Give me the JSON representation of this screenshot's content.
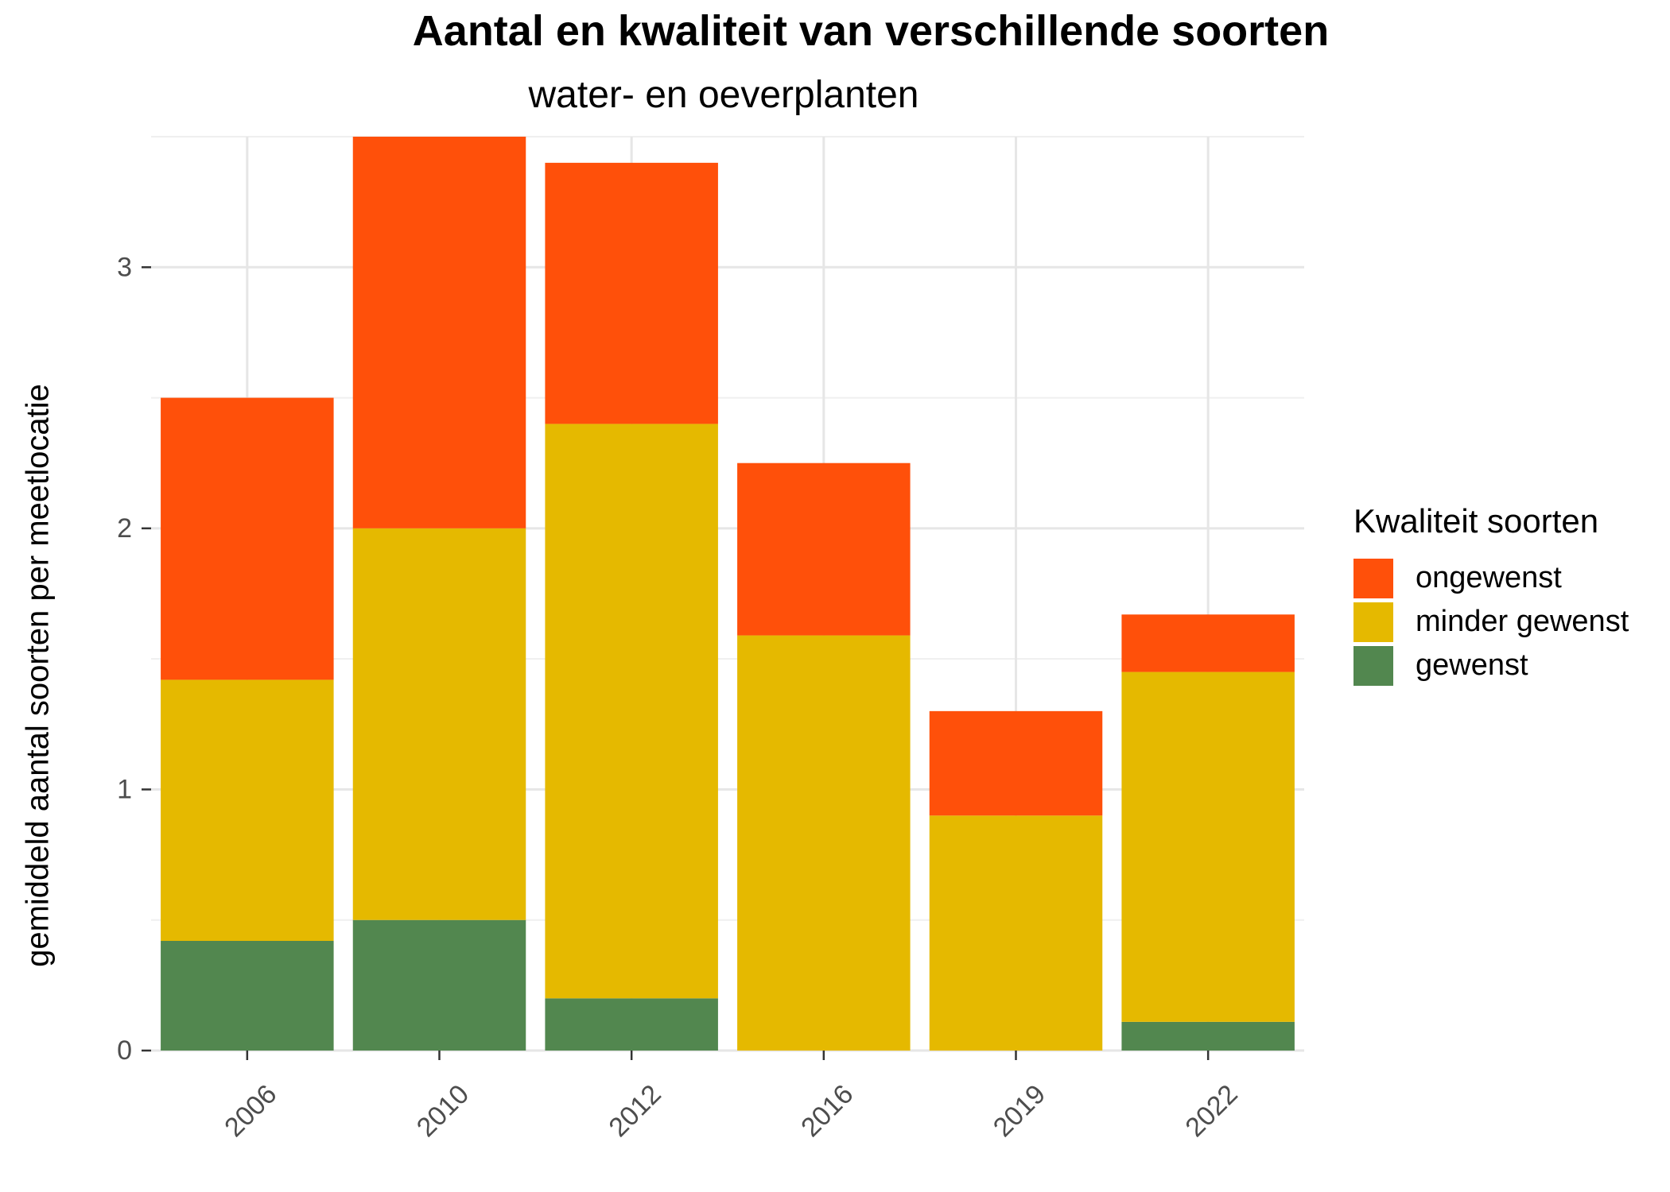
{
  "chart_data": {
    "type": "bar",
    "stacked": true,
    "title": "Aantal en kwaliteit van verschillende soorten",
    "subtitle": "water- en oeverplanten",
    "xlabel": "",
    "ylabel": "gemiddeld aantal soorten per meetlocatie",
    "categories": [
      "2006",
      "2010",
      "2012",
      "2016",
      "2019",
      "2022"
    ],
    "ylim": [
      0,
      3.5
    ],
    "yticks": [
      0,
      1,
      2,
      3
    ],
    "grid": true,
    "legend": {
      "title": "Kwaliteit soorten",
      "placement": "right"
    },
    "series": [
      {
        "name": "gewenst",
        "color": "#52874F",
        "values": [
          0.42,
          0.5,
          0.2,
          0.0,
          0.0,
          0.11
        ]
      },
      {
        "name": "minder gewenst",
        "color": "#E5B900",
        "values": [
          1.0,
          1.5,
          2.2,
          1.59,
          0.9,
          1.34
        ]
      },
      {
        "name": "ongewenst",
        "color": "#FF500A",
        "values": [
          1.08,
          1.5,
          1.0,
          0.66,
          0.4,
          0.22
        ]
      }
    ],
    "legend_order": [
      "ongewenst",
      "minder gewenst",
      "gewenst"
    ]
  }
}
